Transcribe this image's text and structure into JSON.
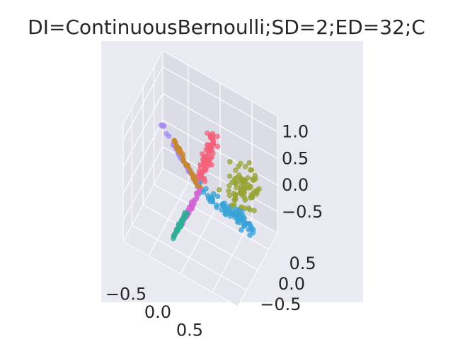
{
  "chart_data": {
    "type": "scatter",
    "projection": "3d",
    "title": "DI=ContinuousBernoulli;SD=2;ED=32;C",
    "xlabel": "",
    "ylabel": "",
    "zlabel": "",
    "grid": true,
    "legend": "none",
    "background": "#eaeaf2",
    "xlim": [
      -0.9,
      0.9
    ],
    "ylim": [
      -0.9,
      0.9
    ],
    "zlim": [
      -0.9,
      1.3
    ],
    "x_ticks": [
      {
        "value": -0.5,
        "label": "−0.5"
      },
      {
        "value": 0.0,
        "label": "0.0"
      },
      {
        "value": 0.5,
        "label": "0.5"
      }
    ],
    "y_ticks": [
      {
        "value": -0.5,
        "label": "−0.5"
      },
      {
        "value": 0.0,
        "label": "0.0"
      },
      {
        "value": 0.5,
        "label": "0.5"
      }
    ],
    "z_ticks": [
      {
        "value": -0.5,
        "label": "−0.5"
      },
      {
        "value": 0.0,
        "label": "0.0"
      },
      {
        "value": 0.5,
        "label": "0.5"
      },
      {
        "value": 1.0,
        "label": "1.0"
      }
    ],
    "series": [
      {
        "color": "#f2617a",
        "kind": "cluster",
        "count": 70,
        "from": [
          -0.05,
          0.05,
          0.0
        ],
        "to": [
          0.05,
          0.5,
          0.7
        ],
        "spread": 0.04,
        "seed": 11
      },
      {
        "color": "#97a431",
        "kind": "cloud",
        "count": 80,
        "center": [
          0.45,
          0.55,
          -0.1
        ],
        "spread_xyz": [
          0.25,
          0.25,
          0.35
        ],
        "seed": 23
      },
      {
        "color": "#36a2d8",
        "kind": "cluster",
        "count": 70,
        "from": [
          0.0,
          0.0,
          0.0
        ],
        "to": [
          0.75,
          0.2,
          -0.4
        ],
        "spread": 0.05,
        "seed": 37
      },
      {
        "color": "#a78af5",
        "kind": "line",
        "count": 40,
        "from": [
          0.0,
          0.0,
          0.0
        ],
        "to": [
          -0.55,
          -0.15,
          0.95
        ],
        "spread": 0.01,
        "seed": 41
      },
      {
        "color": "#c8872f",
        "kind": "line",
        "count": 40,
        "from": [
          0.0,
          0.0,
          0.0
        ],
        "to": [
          -0.4,
          -0.1,
          0.75
        ],
        "spread": 0.01,
        "seed": 43
      },
      {
        "color": "#d267d2",
        "kind": "line",
        "count": 40,
        "from": [
          0.0,
          0.0,
          0.0
        ],
        "to": [
          -0.05,
          -0.7,
          -0.15
        ],
        "spread": 0.01,
        "seed": 47
      },
      {
        "color": "#2fae99",
        "kind": "line",
        "count": 40,
        "from": [
          -0.05,
          -0.45,
          -0.1
        ],
        "to": [
          -0.1,
          -0.95,
          -0.25
        ],
        "spread": 0.01,
        "seed": 53
      }
    ]
  }
}
